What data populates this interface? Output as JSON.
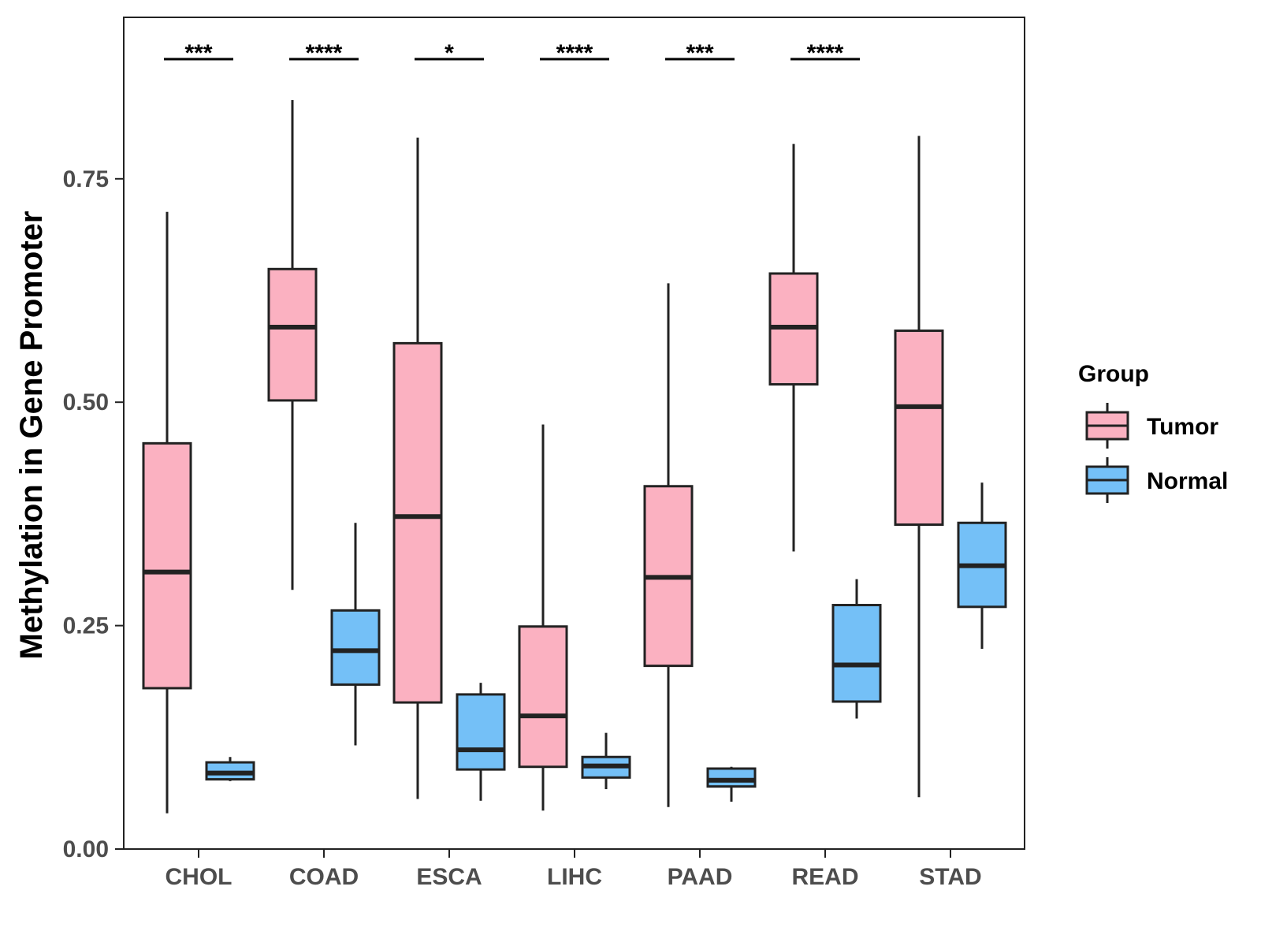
{
  "chart_data": {
    "type": "boxplot",
    "title": "",
    "xlabel": "",
    "ylabel": "Methylation in Gene Promoter",
    "ylim": [
      0,
      0.93
    ],
    "yticks": [
      0.0,
      0.25,
      0.5,
      0.75
    ],
    "ytick_labels": [
      "0.00",
      "0.25",
      "0.50",
      "0.75"
    ],
    "categories": [
      "CHOL",
      "COAD",
      "ESCA",
      "LIHC",
      "PAAD",
      "READ",
      "STAD"
    ],
    "legend": {
      "title": "Group",
      "placement": "right",
      "entries": [
        "Tumor",
        "Normal"
      ]
    },
    "colors": {
      "Tumor": "#fbb1c1",
      "Normal": "#74c0f7",
      "stroke": "#222222"
    },
    "series": [
      {
        "name": "Tumor",
        "boxes": [
          {
            "category": "CHOL",
            "whisker_low": 0.04,
            "q1": 0.18,
            "median": 0.31,
            "q3": 0.454,
            "whisker_high": 0.713
          },
          {
            "category": "COAD",
            "whisker_low": 0.29,
            "q1": 0.502,
            "median": 0.584,
            "q3": 0.649,
            "whisker_high": 0.838
          },
          {
            "category": "ESCA",
            "whisker_low": 0.056,
            "q1": 0.164,
            "median": 0.372,
            "q3": 0.566,
            "whisker_high": 0.796
          },
          {
            "category": "LIHC",
            "whisker_low": 0.043,
            "q1": 0.092,
            "median": 0.149,
            "q3": 0.249,
            "whisker_high": 0.475
          },
          {
            "category": "PAAD",
            "whisker_low": 0.047,
            "q1": 0.205,
            "median": 0.304,
            "q3": 0.406,
            "whisker_high": 0.633
          },
          {
            "category": "READ",
            "whisker_low": 0.333,
            "q1": 0.52,
            "median": 0.584,
            "q3": 0.644,
            "whisker_high": 0.789
          },
          {
            "category": "STAD",
            "whisker_low": 0.058,
            "q1": 0.363,
            "median": 0.495,
            "q3": 0.58,
            "whisker_high": 0.798
          }
        ]
      },
      {
        "name": "Normal",
        "boxes": [
          {
            "category": "CHOL",
            "whisker_low": 0.076,
            "q1": 0.078,
            "median": 0.085,
            "q3": 0.097,
            "whisker_high": 0.103
          },
          {
            "category": "COAD",
            "whisker_low": 0.116,
            "q1": 0.184,
            "median": 0.222,
            "q3": 0.267,
            "whisker_high": 0.365
          },
          {
            "category": "ESCA",
            "whisker_low": 0.054,
            "q1": 0.089,
            "median": 0.111,
            "q3": 0.173,
            "whisker_high": 0.186
          },
          {
            "category": "LIHC",
            "whisker_low": 0.067,
            "q1": 0.08,
            "median": 0.093,
            "q3": 0.103,
            "whisker_high": 0.13
          },
          {
            "category": "PAAD",
            "whisker_low": 0.053,
            "q1": 0.07,
            "median": 0.077,
            "q3": 0.09,
            "whisker_high": 0.092
          },
          {
            "category": "READ",
            "whisker_low": 0.146,
            "q1": 0.165,
            "median": 0.206,
            "q3": 0.273,
            "whisker_high": 0.302
          },
          {
            "category": "STAD",
            "whisker_low": 0.224,
            "q1": 0.271,
            "median": 0.317,
            "q3": 0.365,
            "whisker_high": 0.41
          }
        ]
      }
    ],
    "annotations": [
      {
        "category": "CHOL",
        "text": "***"
      },
      {
        "category": "COAD",
        "text": "****"
      },
      {
        "category": "ESCA",
        "text": "*"
      },
      {
        "category": "LIHC",
        "text": "****"
      },
      {
        "category": "PAAD",
        "text": "***"
      },
      {
        "category": "READ",
        "text": "****"
      }
    ]
  }
}
